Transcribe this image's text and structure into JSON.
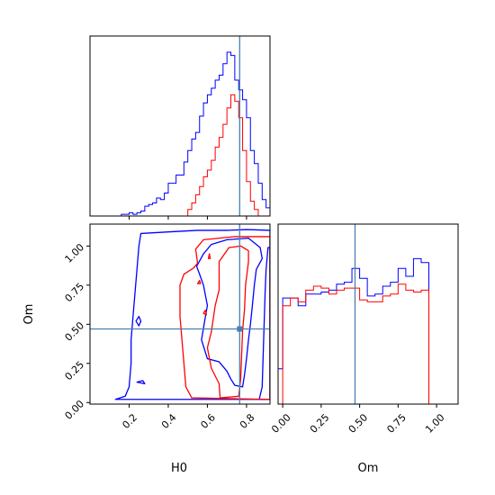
{
  "chart_data": [
    {
      "type": "histogram",
      "panel": "H0 marginal",
      "xlim": [
        0.0,
        0.92
      ],
      "truth": 0.765,
      "colors": {
        "blue": "#0000ff",
        "red": "#ff0000",
        "truth": "#4a7fb0"
      },
      "bin_edges": [
        0.0,
        0.02,
        0.04,
        0.06,
        0.08,
        0.1,
        0.12,
        0.14,
        0.16,
        0.18,
        0.2,
        0.22,
        0.24,
        0.26,
        0.28,
        0.3,
        0.32,
        0.34,
        0.36,
        0.38,
        0.4,
        0.42,
        0.44,
        0.46,
        0.48,
        0.5,
        0.52,
        0.54,
        0.56,
        0.58,
        0.6,
        0.62,
        0.64,
        0.66,
        0.68,
        0.7,
        0.72,
        0.74,
        0.76,
        0.78,
        0.8,
        0.82,
        0.84,
        0.86,
        0.88,
        0.9,
        0.92
      ],
      "series": [
        {
          "color": "blue",
          "values": [
            0,
            0,
            0,
            0,
            0,
            0,
            0,
            0,
            0.01,
            0.01,
            0.02,
            0.01,
            0.02,
            0.03,
            0.06,
            0.07,
            0.08,
            0.11,
            0.1,
            0.14,
            0.2,
            0.2,
            0.25,
            0.25,
            0.33,
            0.4,
            0.47,
            0.51,
            0.61,
            0.69,
            0.74,
            0.78,
            0.83,
            0.86,
            0.93,
            1.0,
            0.98,
            0.83,
            0.77,
            0.71,
            0.6,
            0.4,
            0.32,
            0.2,
            0.1,
            0.05
          ]
        },
        {
          "color": "red",
          "values": [
            0,
            0,
            0,
            0,
            0,
            0,
            0,
            0,
            0,
            0,
            0,
            0,
            0,
            0,
            0,
            0,
            0,
            0,
            0,
            0,
            0,
            0,
            0,
            0,
            0,
            0.04,
            0.08,
            0.13,
            0.18,
            0.24,
            0.28,
            0.34,
            0.42,
            0.48,
            0.56,
            0.66,
            0.74,
            0.7,
            0.6,
            0.4,
            0.21,
            0.09,
            0.04,
            0,
            0,
            0
          ]
        }
      ]
    },
    {
      "type": "contour",
      "panel": "H0 vs Om",
      "xlabel": "H0",
      "ylabel": "Om",
      "xlim": [
        0.0,
        0.92
      ],
      "ylim": [
        -0.01,
        1.14
      ],
      "xticks": [
        "0.2",
        "0.4",
        "0.6",
        "0.8"
      ],
      "xtick_values": [
        0.2,
        0.4,
        0.6,
        0.8
      ],
      "yticks": [
        "0.00",
        "0.25",
        "0.50",
        "0.75",
        "1.00"
      ],
      "ytick_values": [
        0.0,
        0.25,
        0.5,
        0.75,
        1.0
      ],
      "truth": {
        "x": 0.765,
        "y": 0.47
      },
      "contours": [
        {
          "color": "blue",
          "points": [
            [
              0.26,
              1.08
            ],
            [
              0.4,
              1.09
            ],
            [
              0.55,
              1.1
            ],
            [
              0.7,
              1.1
            ],
            [
              0.8,
              1.105
            ],
            [
              0.92,
              1.1
            ],
            [
              0.92,
              0.02
            ],
            [
              0.44,
              0.02
            ],
            [
              0.36,
              0.02
            ],
            [
              0.3,
              0.02
            ],
            [
              0.24,
              0.02
            ],
            [
              0.16,
              0.02
            ],
            [
              0.13,
              0.02
            ],
            [
              0.18,
              0.04
            ],
            [
              0.2,
              0.1
            ],
            [
              0.21,
              0.25
            ],
            [
              0.21,
              0.4
            ],
            [
              0.22,
              0.55
            ],
            [
              0.23,
              0.7
            ],
            [
              0.24,
              0.85
            ],
            [
              0.25,
              1.0
            ]
          ]
        },
        {
          "color": "blue",
          "points": [
            [
              0.545,
              0.87
            ],
            [
              0.58,
              0.95
            ],
            [
              0.62,
              1.01
            ],
            [
              0.7,
              1.04
            ],
            [
              0.81,
              1.05
            ],
            [
              0.84,
              1.02
            ],
            [
              0.87,
              0.99
            ],
            [
              0.88,
              0.92
            ],
            [
              0.85,
              0.85
            ],
            [
              0.84,
              0.75
            ],
            [
              0.83,
              0.62
            ],
            [
              0.82,
              0.5
            ],
            [
              0.81,
              0.4
            ],
            [
              0.8,
              0.28
            ],
            [
              0.79,
              0.18
            ],
            [
              0.78,
              0.1
            ],
            [
              0.74,
              0.11
            ],
            [
              0.72,
              0.15
            ],
            [
              0.7,
              0.2
            ],
            [
              0.66,
              0.26
            ],
            [
              0.6,
              0.28
            ],
            [
              0.57,
              0.4
            ],
            [
              0.59,
              0.55
            ],
            [
              0.6,
              0.62
            ],
            [
              0.58,
              0.75
            ],
            [
              0.56,
              0.82
            ]
          ]
        },
        {
          "color": "blue",
          "points": [
            [
              0.865,
              0.02
            ],
            [
              0.88,
              0.1
            ],
            [
              0.885,
              0.3
            ],
            [
              0.89,
              0.5
            ],
            [
              0.895,
              0.7
            ],
            [
              0.9,
              0.85
            ],
            [
              0.91,
              0.99
            ],
            [
              0.92,
              0.99
            ],
            [
              0.92,
              0.02
            ]
          ]
        },
        {
          "color": "blue",
          "points": [
            [
              0.235,
              0.52
            ],
            [
              0.25,
              0.55
            ],
            [
              0.26,
              0.52
            ],
            [
              0.25,
              0.49
            ]
          ]
        },
        {
          "color": "blue",
          "points": [
            [
              0.24,
              0.13
            ],
            [
              0.27,
              0.14
            ],
            [
              0.28,
              0.12
            ]
          ]
        },
        {
          "color": "red",
          "points": [
            [
              0.52,
              0.03
            ],
            [
              0.49,
              0.1
            ],
            [
              0.48,
              0.25
            ],
            [
              0.47,
              0.4
            ],
            [
              0.46,
              0.55
            ],
            [
              0.46,
              0.75
            ],
            [
              0.48,
              0.82
            ],
            [
              0.53,
              0.86
            ],
            [
              0.55,
              0.89
            ],
            [
              0.54,
              0.98
            ],
            [
              0.58,
              1.04
            ],
            [
              0.66,
              1.05
            ],
            [
              0.74,
              1.06
            ],
            [
              0.92,
              1.06
            ],
            [
              0.92,
              0.02
            ]
          ]
        },
        {
          "color": "red",
          "points": [
            [
              0.665,
              0.03
            ],
            [
              0.66,
              0.12
            ],
            [
              0.62,
              0.22
            ],
            [
              0.6,
              0.35
            ],
            [
              0.62,
              0.45
            ],
            [
              0.64,
              0.62
            ],
            [
              0.66,
              0.72
            ],
            [
              0.66,
              0.9
            ],
            [
              0.71,
              0.99
            ],
            [
              0.77,
              1.0
            ],
            [
              0.81,
              0.97
            ],
            [
              0.81,
              0.9
            ],
            [
              0.795,
              0.75
            ],
            [
              0.79,
              0.6
            ],
            [
              0.78,
              0.46
            ],
            [
              0.775,
              0.3
            ],
            [
              0.77,
              0.15
            ],
            [
              0.76,
              0.04
            ]
          ]
        },
        {
          "color": "red",
          "points": [
            [
              0.58,
              0.57
            ],
            [
              0.59,
              0.59
            ],
            [
              0.595,
              0.56
            ]
          ]
        },
        {
          "color": "red",
          "points": [
            [
              0.605,
              0.92
            ],
            [
              0.61,
              0.95
            ],
            [
              0.615,
              0.92
            ]
          ]
        },
        {
          "color": "red",
          "points": [
            [
              0.55,
              0.76
            ],
            [
              0.56,
              0.78
            ],
            [
              0.565,
              0.76
            ]
          ]
        }
      ]
    },
    {
      "type": "histogram",
      "panel": "Om marginal",
      "xlabel": "Om",
      "xlim": [
        -0.03,
        1.14
      ],
      "xticks": [
        "0.00",
        "0.25",
        "0.50",
        "0.75",
        "1.00"
      ],
      "xtick_values": [
        0.0,
        0.25,
        0.5,
        0.75,
        1.0
      ],
      "truth": 0.47,
      "bin_edges": [
        -0.03,
        0.0,
        0.05,
        0.1,
        0.15,
        0.2,
        0.25,
        0.3,
        0.35,
        0.4,
        0.45,
        0.5,
        0.55,
        0.6,
        0.65,
        0.7,
        0.75,
        0.8,
        0.85,
        0.9,
        0.95,
        1.0,
        1.05,
        1.1
      ],
      "series": [
        {
          "color": "blue",
          "values": [
            0.18,
            0.54,
            0.54,
            0.5,
            0.56,
            0.56,
            0.57,
            0.58,
            0.61,
            0.62,
            0.69,
            0.64,
            0.55,
            0.56,
            0.6,
            0.62,
            0.69,
            0.65,
            0.74,
            0.72,
            0.0,
            0.0,
            0.0
          ]
        },
        {
          "color": "red",
          "values": [
            0.0,
            0.5,
            0.54,
            0.52,
            0.58,
            0.6,
            0.59,
            0.56,
            0.58,
            0.59,
            0.59,
            0.53,
            0.52,
            0.52,
            0.55,
            0.56,
            0.61,
            0.58,
            0.57,
            0.58,
            0.0,
            0.0,
            0.0
          ]
        }
      ]
    }
  ]
}
